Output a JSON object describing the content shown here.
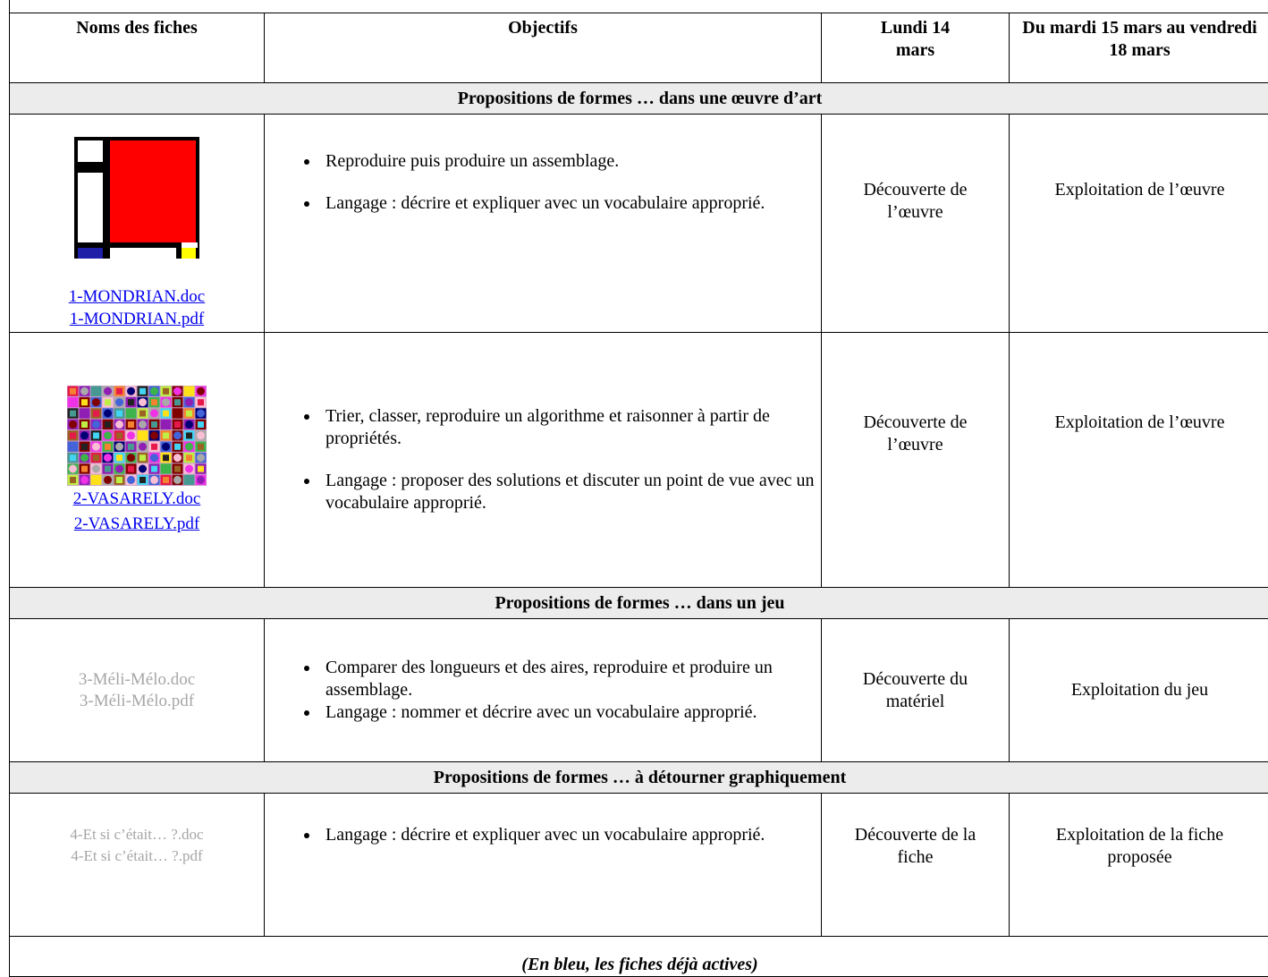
{
  "table": {
    "header": [
      "Noms des fiches",
      "Objectifs",
      "Lundi 14 mars",
      "Du mardi 15 mars au vendredi 18 mars"
    ],
    "sections": [
      {
        "title": "Propositions de formes … dans une œuvre d’art",
        "rows": [
          {
            "files": [
              "1-MONDRIAN.doc",
              "1-MONDRIAN.pdf"
            ],
            "objectives": [
              "Reproduire puis produire un assemblage.",
              "Langage : décrire et expliquer avec un vocabulaire approprié."
            ],
            "monday": "Découverte de l’œuvre",
            "rest": "Exploitation de l’œuvre"
          },
          {
            "files": [
              "2-VASARELY.doc",
              "2-VASARELY.pdf"
            ],
            "objectives": [
              "Trier, classer, reproduire un algorithme et raisonner à partir de propriétés.",
              "Langage : proposer des solutions et discuter un point de vue avec un vocabulaire approprié."
            ],
            "monday": "Découverte de l’œuvre",
            "rest": "Exploitation de l’œuvre"
          }
        ]
      },
      {
        "title": "Propositions de formes … dans un jeu",
        "rows": [
          {
            "files": [
              "3-Méli-Mélo.doc",
              "3-Méli-Mélo.pdf"
            ],
            "objectives": [
              "Comparer des longueurs et des aires, reproduire et produire un assemblage.",
              "Langage : nommer et décrire avec un vocabulaire approprié."
            ],
            "monday": "Découverte du matériel",
            "rest": "Exploitation du jeu"
          }
        ]
      },
      {
        "title": "Propositions de formes … à détourner graphiquement",
        "rows": [
          {
            "files": [
              "4-Et si c’était… ?.doc",
              "4-Et si c’était… ?.pdf"
            ],
            "objectives": [
              "Langage : décrire et expliquer avec un vocabulaire approprié."
            ],
            "monday": "Découverte de la fiche",
            "rest": "Exploitation de la fiche proposée"
          }
        ]
      }
    ],
    "footer": "(En bleu, les fiches déjà actives)"
  }
}
